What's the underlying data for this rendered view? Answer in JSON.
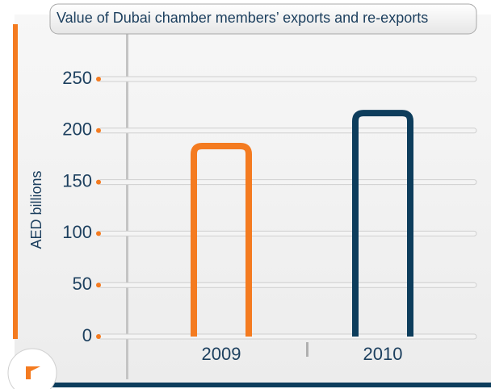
{
  "chart_data": {
    "type": "bar",
    "title": "Value of Dubai chamber members’ exports and re-exports",
    "y_label": "AED billions",
    "categories": [
      "2009",
      "2010"
    ],
    "values": [
      185,
      217
    ],
    "colors": [
      "#f47b20",
      "#0d3d5c"
    ],
    "ylim": [
      0,
      250
    ],
    "yticks": [
      0,
      50,
      100,
      150,
      200,
      250
    ],
    "grid": true
  }
}
